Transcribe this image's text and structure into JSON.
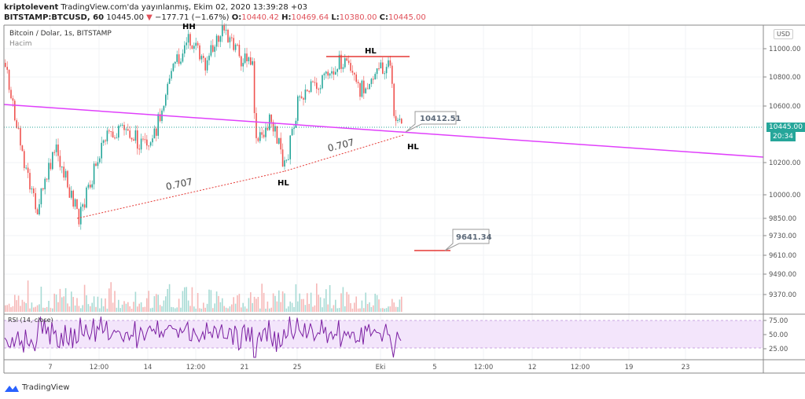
{
  "header": {
    "author": "kriptolevent",
    "published": "TradingView.com'da yayınlanmış, Ekim 02, 2020 13:39:28 +03",
    "symbol": "BITSTAMP:BTCUSD, 60",
    "price": "10445.00",
    "change": "−177.71 (−1.67%)",
    "o_label": "O:",
    "o": "10440.42",
    "h_label": "H:",
    "h": "10469.64",
    "l_label": "L:",
    "l": "10380.00",
    "c_label": "C:",
    "c": "10445.00"
  },
  "legend": {
    "title": "Bitcoin / Dolar, 1s, BITSTAMP",
    "volume": "Hacim",
    "rsi": "RSI (14, close)"
  },
  "currency": "USD",
  "price_axis": [
    "11000.00",
    "10800.00",
    "10600.00",
    "10200.00",
    "10000.00",
    "9850.00",
    "9730.00",
    "9610.00",
    "9490.00",
    "9370.00"
  ],
  "rsi_axis": [
    "75.00",
    "50.00",
    "25.00"
  ],
  "last_price": "10445.00",
  "countdown": "20:34",
  "time_axis": [
    "7",
    "12:00",
    "14",
    "12:00",
    "21",
    "25",
    "Eki",
    "5",
    "12:00",
    "12",
    "12:00",
    "19",
    "23"
  ],
  "annotations": {
    "hh": "HH",
    "hl1": "HL",
    "hl2": "HL",
    "hl3": "HL",
    "fib1": "0.707",
    "fib2": "0.707",
    "callout1": "10412.51",
    "callout2": "9641.34"
  },
  "colors": {
    "up": "#26a69a",
    "down": "#ef5350",
    "trend": "#e040fb",
    "rsi": "#7b1fa2",
    "level": "#e53935"
  },
  "brand": "TradingView"
}
